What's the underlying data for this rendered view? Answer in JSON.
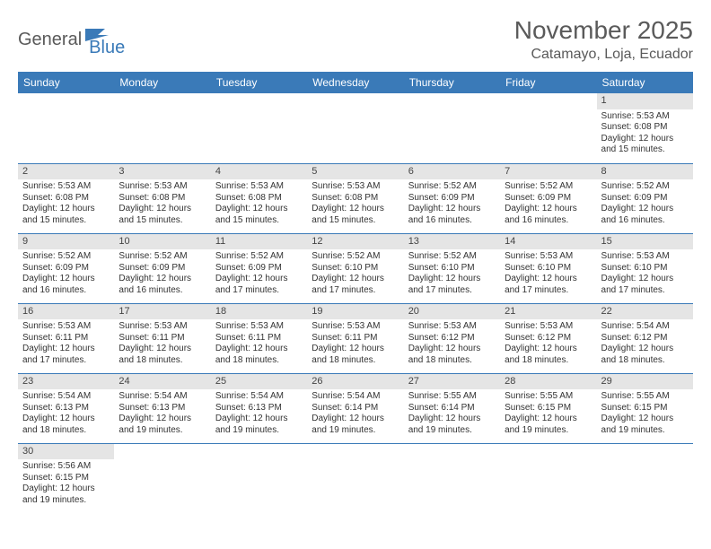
{
  "brand": {
    "part1": "General",
    "part2": "Blue",
    "accent": "#3a7ab8",
    "text_color": "#5a5a5a"
  },
  "title": "November 2025",
  "location": "Catamayo, Loja, Ecuador",
  "colors": {
    "header_bg": "#3a7ab8",
    "header_fg": "#ffffff",
    "daynum_bg": "#e5e5e5",
    "row_border": "#3a7ab8",
    "body_text": "#333333"
  },
  "weekdays": [
    "Sunday",
    "Monday",
    "Tuesday",
    "Wednesday",
    "Thursday",
    "Friday",
    "Saturday"
  ],
  "weeks": [
    [
      null,
      null,
      null,
      null,
      null,
      null,
      {
        "n": "1",
        "sunrise": "5:53 AM",
        "sunset": "6:08 PM",
        "daylight": "12 hours and 15 minutes."
      }
    ],
    [
      {
        "n": "2",
        "sunrise": "5:53 AM",
        "sunset": "6:08 PM",
        "daylight": "12 hours and 15 minutes."
      },
      {
        "n": "3",
        "sunrise": "5:53 AM",
        "sunset": "6:08 PM",
        "daylight": "12 hours and 15 minutes."
      },
      {
        "n": "4",
        "sunrise": "5:53 AM",
        "sunset": "6:08 PM",
        "daylight": "12 hours and 15 minutes."
      },
      {
        "n": "5",
        "sunrise": "5:53 AM",
        "sunset": "6:08 PM",
        "daylight": "12 hours and 15 minutes."
      },
      {
        "n": "6",
        "sunrise": "5:52 AM",
        "sunset": "6:09 PM",
        "daylight": "12 hours and 16 minutes."
      },
      {
        "n": "7",
        "sunrise": "5:52 AM",
        "sunset": "6:09 PM",
        "daylight": "12 hours and 16 minutes."
      },
      {
        "n": "8",
        "sunrise": "5:52 AM",
        "sunset": "6:09 PM",
        "daylight": "12 hours and 16 minutes."
      }
    ],
    [
      {
        "n": "9",
        "sunrise": "5:52 AM",
        "sunset": "6:09 PM",
        "daylight": "12 hours and 16 minutes."
      },
      {
        "n": "10",
        "sunrise": "5:52 AM",
        "sunset": "6:09 PM",
        "daylight": "12 hours and 16 minutes."
      },
      {
        "n": "11",
        "sunrise": "5:52 AM",
        "sunset": "6:09 PM",
        "daylight": "12 hours and 17 minutes."
      },
      {
        "n": "12",
        "sunrise": "5:52 AM",
        "sunset": "6:10 PM",
        "daylight": "12 hours and 17 minutes."
      },
      {
        "n": "13",
        "sunrise": "5:52 AM",
        "sunset": "6:10 PM",
        "daylight": "12 hours and 17 minutes."
      },
      {
        "n": "14",
        "sunrise": "5:53 AM",
        "sunset": "6:10 PM",
        "daylight": "12 hours and 17 minutes."
      },
      {
        "n": "15",
        "sunrise": "5:53 AM",
        "sunset": "6:10 PM",
        "daylight": "12 hours and 17 minutes."
      }
    ],
    [
      {
        "n": "16",
        "sunrise": "5:53 AM",
        "sunset": "6:11 PM",
        "daylight": "12 hours and 17 minutes."
      },
      {
        "n": "17",
        "sunrise": "5:53 AM",
        "sunset": "6:11 PM",
        "daylight": "12 hours and 18 minutes."
      },
      {
        "n": "18",
        "sunrise": "5:53 AM",
        "sunset": "6:11 PM",
        "daylight": "12 hours and 18 minutes."
      },
      {
        "n": "19",
        "sunrise": "5:53 AM",
        "sunset": "6:11 PM",
        "daylight": "12 hours and 18 minutes."
      },
      {
        "n": "20",
        "sunrise": "5:53 AM",
        "sunset": "6:12 PM",
        "daylight": "12 hours and 18 minutes."
      },
      {
        "n": "21",
        "sunrise": "5:53 AM",
        "sunset": "6:12 PM",
        "daylight": "12 hours and 18 minutes."
      },
      {
        "n": "22",
        "sunrise": "5:54 AM",
        "sunset": "6:12 PM",
        "daylight": "12 hours and 18 minutes."
      }
    ],
    [
      {
        "n": "23",
        "sunrise": "5:54 AM",
        "sunset": "6:13 PM",
        "daylight": "12 hours and 18 minutes."
      },
      {
        "n": "24",
        "sunrise": "5:54 AM",
        "sunset": "6:13 PM",
        "daylight": "12 hours and 19 minutes."
      },
      {
        "n": "25",
        "sunrise": "5:54 AM",
        "sunset": "6:13 PM",
        "daylight": "12 hours and 19 minutes."
      },
      {
        "n": "26",
        "sunrise": "5:54 AM",
        "sunset": "6:14 PM",
        "daylight": "12 hours and 19 minutes."
      },
      {
        "n": "27",
        "sunrise": "5:55 AM",
        "sunset": "6:14 PM",
        "daylight": "12 hours and 19 minutes."
      },
      {
        "n": "28",
        "sunrise": "5:55 AM",
        "sunset": "6:15 PM",
        "daylight": "12 hours and 19 minutes."
      },
      {
        "n": "29",
        "sunrise": "5:55 AM",
        "sunset": "6:15 PM",
        "daylight": "12 hours and 19 minutes."
      }
    ],
    [
      {
        "n": "30",
        "sunrise": "5:56 AM",
        "sunset": "6:15 PM",
        "daylight": "12 hours and 19 minutes."
      },
      null,
      null,
      null,
      null,
      null,
      null
    ]
  ],
  "labels": {
    "sunrise": "Sunrise:",
    "sunset": "Sunset:",
    "daylight": "Daylight:"
  }
}
